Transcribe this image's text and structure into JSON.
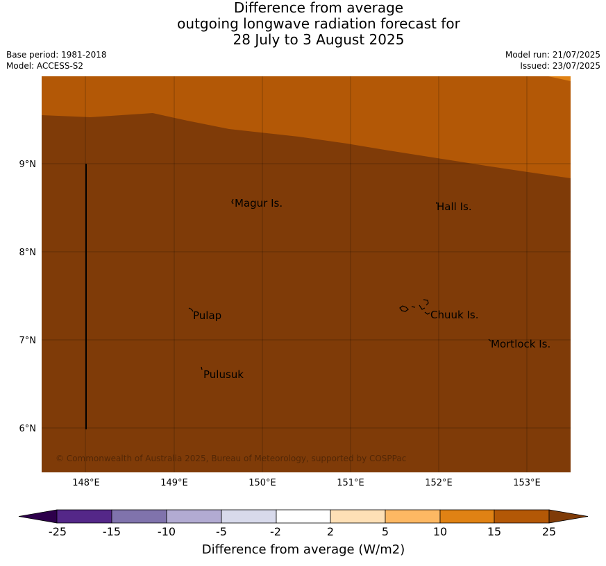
{
  "title": {
    "line1": "Difference from average",
    "line2": "outgoing longwave radiation forecast for",
    "line3": "28 July to 3 August 2025"
  },
  "meta": {
    "base_period": "Base period: 1981-2018",
    "model": "Model: ACCESS-S2",
    "model_run": "Model run: 21/07/2025",
    "issued": "Issued: 23/07/2025"
  },
  "map": {
    "lon_labels": [
      "148°E",
      "149°E",
      "150°E",
      "151°E",
      "152°E",
      "153°E"
    ],
    "lat_labels": [
      "9°N",
      "8°N",
      "7°N",
      "6°N"
    ],
    "places": [
      "Magur Is.",
      "Hall Is.",
      "Pulap",
      "Chuuk Is.",
      "Mortlock Is.",
      "Pulusuk"
    ],
    "copyright": "© Commonwealth of Australia 2025, Bureau of Meteorology, supported by COSPPac",
    "colors": {
      "15_to_25": "#7f3b08",
      "10_to_15": "#b35806"
    }
  },
  "colorbar": {
    "title": "Difference from average (W/m2)",
    "labels": [
      "-25",
      "-15",
      "-10",
      "-5",
      "-2",
      "2",
      "5",
      "10",
      "15",
      "25"
    ],
    "colors": [
      "#2d004b",
      "#542788",
      "#8073ac",
      "#b2abd2",
      "#d8daeb",
      "#ffffff",
      "#fee0b6",
      "#fdb863",
      "#e08214",
      "#b35806",
      "#7f3b08"
    ]
  }
}
